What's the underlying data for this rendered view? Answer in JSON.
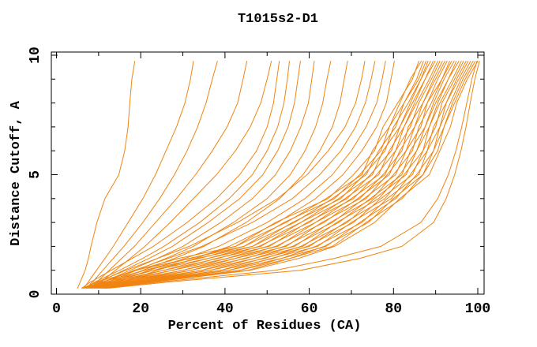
{
  "chart_data": {
    "type": "line",
    "title": "T1015s2-D1",
    "xlabel": "Percent of Residues (CA)",
    "ylabel": "Distance Cutoff, A",
    "xlim": [
      -1.2,
      101.5
    ],
    "ylim": [
      0,
      10.13
    ],
    "x_ticks_major": [
      0,
      20,
      40,
      60,
      80,
      100
    ],
    "x_ticks_minor": [
      10,
      30,
      50,
      70,
      90
    ],
    "y_ticks_major": [
      0,
      5,
      10
    ],
    "y_ticks_minor": [
      1,
      2,
      3,
      4,
      6,
      7,
      8,
      9
    ],
    "grid": false,
    "legend": "none",
    "line_color": "#F08410",
    "axis_color": "#000000",
    "background_color": "#ffffff",
    "cutoffs": [
      0.25,
      0.5,
      1,
      1.5,
      2,
      3,
      4,
      5,
      6,
      7,
      8,
      9,
      9.75
    ],
    "series": [
      [
        5,
        5.6,
        6.8,
        7.6,
        8.2,
        9.6,
        11.5,
        14.8,
        16.2,
        17.0,
        17.4,
        17.9,
        18.6
      ],
      [
        6.5,
        7.5,
        9.5,
        11.5,
        13.5,
        17,
        20.5,
        23.5,
        26,
        28.5,
        30.5,
        31.8,
        32.5
      ],
      [
        7,
        8.5,
        11,
        13.5,
        16,
        20.5,
        24.5,
        28,
        31,
        33.5,
        35.5,
        37,
        38.2
      ],
      [
        8,
        9.5,
        12.5,
        15.5,
        18.5,
        23.5,
        28.5,
        33,
        37,
        40.5,
        43,
        44.3,
        45.2
      ],
      [
        8.5,
        10.5,
        14,
        17.5,
        21,
        27,
        32.5,
        38,
        42.5,
        46,
        48.5,
        50,
        51
      ],
      [
        6,
        8,
        13,
        18,
        23,
        31,
        38,
        43.5,
        47.5,
        50,
        51.5,
        52.3,
        52.9
      ],
      [
        7,
        9,
        15,
        20.5,
        25.5,
        34,
        41,
        46.5,
        50,
        52.5,
        54,
        54.8,
        55.3
      ],
      [
        7.5,
        10,
        16,
        22,
        27.5,
        36,
        43.5,
        49,
        52.5,
        55,
        56.5,
        57.3,
        57.9
      ],
      [
        8,
        11,
        17.5,
        24,
        30,
        39,
        46.5,
        52,
        55.5,
        58,
        59.8,
        60.6,
        61.2
      ],
      [
        8.5,
        12,
        19,
        26,
        32.5,
        42,
        50,
        55.5,
        59,
        61.5,
        63.2,
        64.2,
        65.1
      ],
      [
        9,
        13,
        20.5,
        28,
        35,
        45,
        53,
        58.5,
        62.5,
        65.5,
        67.3,
        68.3,
        69.1
      ],
      [
        6.5,
        9.5,
        16.5,
        24,
        31.5,
        43,
        52.5,
        59.5,
        64.5,
        68.5,
        71,
        72.4,
        73.2
      ],
      [
        7.5,
        11,
        18.5,
        26.5,
        34.5,
        46.5,
        56,
        62.5,
        67.5,
        71,
        73.3,
        74.7,
        75.6
      ],
      [
        9.5,
        14,
        22,
        30.5,
        38.5,
        50,
        59,
        65.5,
        70,
        73.5,
        76,
        77.3,
        78.1
      ],
      [
        10.5,
        15.5,
        24,
        33,
        41,
        52.5,
        61.5,
        68,
        72.5,
        76,
        78.3,
        79.4,
        80.2
      ],
      [
        6.2,
        9.5,
        19,
        29,
        42.5,
        52,
        64.5,
        70.5,
        75.5,
        77.5,
        81,
        84.5,
        86
      ],
      [
        6,
        11,
        18.5,
        32,
        42.5,
        54.5,
        64,
        72.5,
        75,
        79,
        81.5,
        84,
        86.6
      ],
      [
        7,
        10.5,
        21,
        31.5,
        44.5,
        54,
        66,
        72,
        77,
        79,
        82.5,
        85.5,
        87.1
      ],
      [
        6.5,
        12,
        21,
        34,
        44.5,
        56.5,
        65.5,
        73.5,
        76.5,
        80.5,
        82.5,
        86,
        87.7
      ],
      [
        7.2,
        11.5,
        23,
        33.5,
        46.5,
        56,
        67.5,
        73,
        78,
        80,
        83.5,
        86.5,
        88.2
      ],
      [
        7,
        13,
        23,
        36,
        46.5,
        58,
        67,
        75,
        77.5,
        81.5,
        84,
        86.5,
        88.8
      ],
      [
        7.5,
        12.5,
        25.5,
        36,
        48.5,
        58,
        69,
        74.5,
        79.5,
        81.5,
        84.5,
        87.5,
        89.4
      ],
      [
        7.5,
        14,
        25.5,
        38.5,
        48,
        60,
        68.5,
        76.5,
        79,
        82.5,
        85,
        87.5,
        89.9
      ],
      [
        8.2,
        13.5,
        27.5,
        38,
        50.5,
        59.5,
        70.5,
        76,
        80.5,
        82.5,
        85.5,
        88.5,
        90.5
      ],
      [
        8,
        15,
        27.5,
        40.5,
        50,
        61.5,
        70,
        78,
        80.5,
        84,
        86,
        89,
        91
      ],
      [
        8.5,
        14.5,
        30,
        40.5,
        52.5,
        61.5,
        72,
        77.5,
        82,
        83.5,
        87,
        89.5,
        91.6
      ],
      [
        8.5,
        16,
        30,
        42.5,
        52,
        63.5,
        71.5,
        79,
        81.5,
        85,
        87,
        90,
        92.2
      ],
      [
        9.2,
        15.5,
        32,
        42.5,
        54.5,
        63,
        73.5,
        78.5,
        83,
        85,
        88,
        90.5,
        92.7
      ],
      [
        9,
        17,
        32,
        45,
        54,
        65.5,
        73,
        80.5,
        83,
        86.5,
        88,
        91.5,
        93.3
      ],
      [
        9.5,
        16.5,
        34.5,
        44.5,
        56.5,
        65,
        75,
        80,
        84.5,
        86,
        89,
        91.5,
        93.8
      ],
      [
        9.5,
        18,
        34.5,
        47,
        56,
        67,
        74.5,
        82,
        84,
        87.5,
        89.5,
        92,
        94.4
      ],
      [
        10,
        17.5,
        36.5,
        47,
        58.5,
        66.5,
        76.5,
        81.5,
        85.5,
        87.5,
        90,
        93,
        94.9
      ],
      [
        10,
        19,
        36.5,
        49.5,
        58,
        69,
        75.5,
        83,
        85.5,
        88.5,
        90.5,
        93,
        95.5
      ],
      [
        10.5,
        18.5,
        39,
        49,
        60,
        68.5,
        78,
        82.5,
        87,
        88.5,
        91,
        94,
        96.1
      ],
      [
        10.5,
        20,
        39,
        51.5,
        59.5,
        70.5,
        77,
        84.5,
        87,
        90,
        91.5,
        94.5,
        96.6
      ],
      [
        11,
        19.5,
        41,
        51,
        62,
        70,
        79.5,
        84,
        88,
        89.5,
        92.5,
        95,
        97.2
      ],
      [
        11,
        20.5,
        41,
        53.5,
        61.5,
        72.5,
        78.5,
        86,
        88,
        91,
        92.5,
        95.5,
        97.7
      ],
      [
        11.5,
        20.5,
        43.5,
        53.5,
        64,
        72,
        80.5,
        85.5,
        89.5,
        91,
        93.5,
        96,
        98.3
      ],
      [
        11.5,
        21.5,
        43.5,
        55.5,
        63.5,
        74,
        80,
        87,
        89.5,
        92,
        94,
        96.5,
        98.9
      ],
      [
        12,
        21,
        45.5,
        55.5,
        65.5,
        73.5,
        82,
        87,
        90.5,
        92,
        94.5,
        97,
        99.4
      ],
      [
        12,
        22.5,
        46,
        57.5,
        66,
        75.5,
        81.5,
        88.5,
        91,
        93.5,
        95,
        97.5,
        100
      ],
      [
        11.5,
        24,
        52,
        66,
        77,
        86.5,
        90.5,
        93,
        94.8,
        96.2,
        97.4,
        98.6,
        99.8
      ],
      [
        12.5,
        26,
        58,
        72,
        82,
        89.5,
        92.5,
        94.5,
        96,
        97.2,
        98.2,
        99.3,
        100.4
      ]
    ],
    "x_tick_labels": [
      "0",
      "20",
      "40",
      "60",
      "80",
      "100"
    ],
    "y_tick_labels": [
      "0",
      "5",
      "10"
    ]
  }
}
